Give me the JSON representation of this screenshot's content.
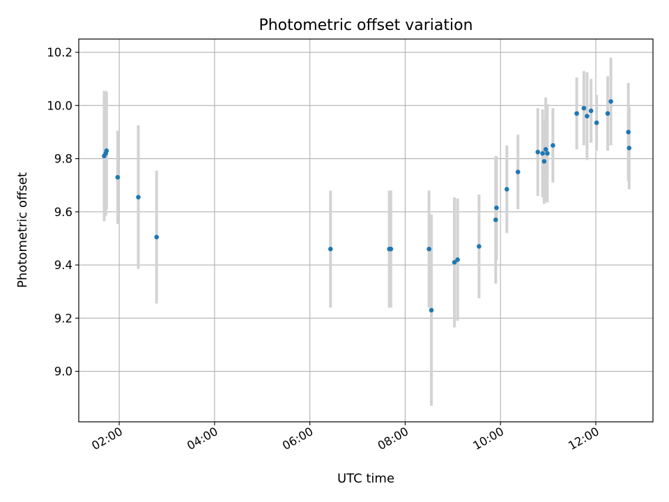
{
  "chart_data": {
    "type": "scatter",
    "title": "Photometric offset variation",
    "xlabel": "UTC time",
    "ylabel": "Photometric offset",
    "xlim": [
      "01:09",
      "13:12"
    ],
    "ylim": [
      8.81,
      10.25
    ],
    "xticks": [
      "02:00",
      "04:00",
      "06:00",
      "08:00",
      "10:00",
      "12:00"
    ],
    "yticks": [
      9.0,
      9.2,
      9.4,
      9.6,
      9.8,
      10.0,
      10.2
    ],
    "grid": true,
    "colors": {
      "points": "#1f77b4",
      "errorbars": "#d3d3d3",
      "grid": "#b0b0b0"
    },
    "points": [
      {
        "t": "01:41",
        "y": 9.81,
        "err": 0.245
      },
      {
        "t": "01:43",
        "y": 9.82,
        "err": 0.235
      },
      {
        "t": "01:44",
        "y": 9.83,
        "err": 0.22
      },
      {
        "t": "01:58",
        "y": 9.73,
        "err": 0.175
      },
      {
        "t": "02:24",
        "y": 9.655,
        "err": 0.27
      },
      {
        "t": "02:47",
        "y": 9.505,
        "err": 0.25
      },
      {
        "t": "06:26",
        "y": 9.46,
        "err": 0.22
      },
      {
        "t": "07:40",
        "y": 9.46,
        "err": 0.22
      },
      {
        "t": "07:42",
        "y": 9.46,
        "err": 0.22
      },
      {
        "t": "08:30",
        "y": 9.46,
        "err": 0.22
      },
      {
        "t": "08:33",
        "y": 9.23,
        "err": 0.36
      },
      {
        "t": "09:02",
        "y": 9.41,
        "err": 0.245
      },
      {
        "t": "09:06",
        "y": 9.42,
        "err": 0.23
      },
      {
        "t": "09:33",
        "y": 9.47,
        "err": 0.195
      },
      {
        "t": "09:54",
        "y": 9.57,
        "err": 0.24
      },
      {
        "t": "09:55",
        "y": 9.615,
        "err": 0.195
      },
      {
        "t": "10:08",
        "y": 9.685,
        "err": 0.165
      },
      {
        "t": "10:22",
        "y": 9.75,
        "err": 0.14
      },
      {
        "t": "10:47",
        "y": 9.825,
        "err": 0.165
      },
      {
        "t": "10:53",
        "y": 9.82,
        "err": 0.165
      },
      {
        "t": "10:55",
        "y": 9.79,
        "err": 0.16
      },
      {
        "t": "10:57",
        "y": 9.835,
        "err": 0.195
      },
      {
        "t": "10:59",
        "y": 9.82,
        "err": 0.185
      },
      {
        "t": "11:06",
        "y": 9.85,
        "err": 0.14
      },
      {
        "t": "11:36",
        "y": 9.97,
        "err": 0.135
      },
      {
        "t": "11:45",
        "y": 9.99,
        "err": 0.14
      },
      {
        "t": "11:49",
        "y": 9.96,
        "err": 0.165
      },
      {
        "t": "11:54",
        "y": 9.98,
        "err": 0.12
      },
      {
        "t": "12:01",
        "y": 9.935,
        "err": 0.105
      },
      {
        "t": "12:15",
        "y": 9.97,
        "err": 0.14
      },
      {
        "t": "12:19",
        "y": 10.015,
        "err": 0.165
      },
      {
        "t": "12:41",
        "y": 9.9,
        "err": 0.185
      },
      {
        "t": "12:42",
        "y": 9.84,
        "err": 0.155
      }
    ]
  }
}
